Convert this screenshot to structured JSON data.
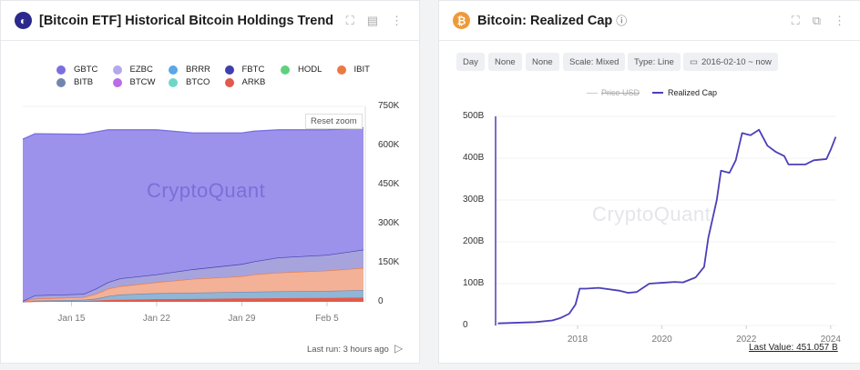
{
  "left_panel": {
    "title": "[Bitcoin ETF] Historical Bitcoin Holdings Trend",
    "icons": [
      "expand-icon",
      "table-icon",
      "more-vertical-icon"
    ],
    "reset_zoom": "Reset zoom",
    "watermark": "CryptoQuant",
    "last_run": "Last run: 3 hours ago",
    "legend": [
      {
        "label": "GBTC",
        "color": "#7b6fe0"
      },
      {
        "label": "EZBC",
        "color": "#b3a8ec"
      },
      {
        "label": "BRRR",
        "color": "#5aa6e8"
      },
      {
        "label": "FBTC",
        "color": "#3f3fae"
      },
      {
        "label": "HODL",
        "color": "#5fd17e"
      },
      {
        "label": "IBIT",
        "color": "#ea7a45"
      },
      {
        "label": "BITB",
        "color": "#7287ad"
      },
      {
        "label": "BTCW",
        "color": "#bb6ce6"
      },
      {
        "label": "BTCO",
        "color": "#6fd6c6"
      },
      {
        "label": "ARKB",
        "color": "#e25a4b"
      }
    ]
  },
  "right_panel": {
    "title": "Bitcoin: Realized Cap",
    "icons": [
      "expand-icon",
      "external-link-icon",
      "more-vertical-icon"
    ],
    "chips": [
      "Day",
      "None",
      "None",
      "Scale: Mixed",
      "Type: Line",
      "2016-02-10 ~ now"
    ],
    "legend": [
      {
        "label": "Price USD",
        "hidden": true,
        "color": "#cccccc"
      },
      {
        "label": "Realized Cap",
        "color": "#4b3fb8"
      }
    ],
    "watermark": "CryptoQuant",
    "last_value": "Last Value: 451.057 B"
  },
  "chart_data": [
    {
      "type": "area",
      "stacked": true,
      "x": [
        "Jan 11",
        "Jan 12",
        "Jan 16",
        "Jan 17",
        "Jan 18",
        "Jan 19",
        "Jan 22",
        "Jan 25",
        "Jan 29",
        "Jan 30",
        "Feb 1",
        "Feb 5",
        "Feb 8"
      ],
      "x_ticks": [
        "Jan 15",
        "Jan 22",
        "Jan 29",
        "Feb 5"
      ],
      "y_ticks": [
        "0",
        "150K",
        "300K",
        "450K",
        "600K",
        "750K"
      ],
      "ylim": [
        0,
        750000
      ],
      "y_axis": "right",
      "legend_position": "top",
      "series": [
        {
          "name": "ARKB",
          "color": "#e25a4b",
          "values": [
            0,
            2000,
            3000,
            5000,
            7000,
            8000,
            10000,
            11000,
            13000,
            13000,
            14000,
            15000,
            16000
          ]
        },
        {
          "name": "BITB",
          "color": "#8fb6d6",
          "values": [
            0,
            3000,
            5000,
            7000,
            15000,
            20000,
            23000,
            24000,
            25000,
            26000,
            26000,
            27000,
            29000
          ]
        },
        {
          "name": "IBIT",
          "color": "#f3b197",
          "values": [
            2000,
            7000,
            10000,
            18000,
            28000,
            32000,
            42000,
            53000,
            60000,
            66000,
            72000,
            78000,
            85000
          ]
        },
        {
          "name": "FBTC",
          "color": "#a7a4dd",
          "values": [
            1000,
            13000,
            12000,
            20000,
            25000,
            30000,
            30000,
            37000,
            47000,
            50000,
            58000,
            60000,
            70000
          ]
        },
        {
          "name": "GBTC",
          "color": "#9c92ec",
          "values": [
            621000,
            620000,
            613000,
            602000,
            585000,
            570000,
            555000,
            523000,
            503000,
            500000,
            490000,
            480000,
            468000
          ]
        }
      ]
    },
    {
      "type": "line",
      "x_ticks": [
        "2018",
        "2020",
        "2022",
        "2024"
      ],
      "y_ticks": [
        "0",
        "100B",
        "200B",
        "300B",
        "400B",
        "500B"
      ],
      "ylim": [
        0,
        500
      ],
      "xlim": [
        2016.11,
        2024.12
      ],
      "series": [
        {
          "name": "Realized Cap",
          "color": "#4b3fb8",
          "x": [
            2016.11,
            2017.0,
            2017.4,
            2017.6,
            2017.8,
            2017.95,
            2018.05,
            2018.2,
            2018.5,
            2019.0,
            2019.2,
            2019.4,
            2019.7,
            2020.0,
            2020.3,
            2020.5,
            2020.8,
            2021.0,
            2021.1,
            2021.3,
            2021.4,
            2021.6,
            2021.75,
            2021.9,
            2022.1,
            2022.3,
            2022.5,
            2022.7,
            2022.9,
            2023.0,
            2023.4,
            2023.6,
            2023.9,
            2024.0,
            2024.12
          ],
          "values": [
            5,
            8,
            12,
            18,
            28,
            50,
            88,
            88,
            90,
            83,
            78,
            80,
            100,
            102,
            104,
            103,
            115,
            140,
            210,
            300,
            370,
            365,
            395,
            460,
            455,
            468,
            430,
            415,
            405,
            385,
            385,
            395,
            398,
            420,
            451
          ]
        }
      ]
    }
  ]
}
